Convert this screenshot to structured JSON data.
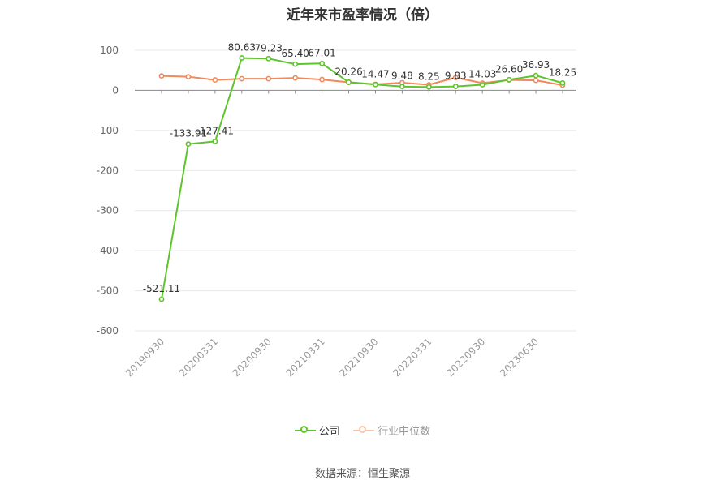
{
  "title": "近年来市盈率情况（倍）",
  "source": "数据来源：恒生聚源",
  "legend": [
    {
      "name": "公司",
      "color": "#5ec42d"
    },
    {
      "name": "行业中位数",
      "color": "#f08a5d"
    }
  ],
  "chart_data": {
    "type": "line",
    "title": "近年来市盈率情况（倍）",
    "xlabel": "",
    "ylabel": "",
    "ylim": [
      -600,
      100
    ],
    "yticks": [
      100,
      0,
      -100,
      -200,
      -300,
      -400,
      -500,
      -600
    ],
    "x": [
      "20190930",
      "20191231",
      "20200331",
      "20200630",
      "20200930",
      "20201231",
      "20210331",
      "20210630",
      "20210930",
      "20211231",
      "20220331",
      "20220630",
      "20220930",
      "20221231",
      "20230630",
      "20230930"
    ],
    "xtick_labels": [
      "20190930",
      "20200331",
      "20200930",
      "20210331",
      "20210930",
      "20220331",
      "20220930",
      "20230630"
    ],
    "grid": true,
    "legend_position": "bottom",
    "series": [
      {
        "name": "公司",
        "color": "#5ec42d",
        "values": [
          -521.11,
          -133.91,
          -127.41,
          80.63,
          79.23,
          65.4,
          67.01,
          20.26,
          14.47,
          9.48,
          8.25,
          9.83,
          14.03,
          26.6,
          36.93,
          18.25
        ],
        "labels": [
          "-521.11",
          "-133.91",
          "-127.41",
          "80.63",
          "79.23",
          "65.40",
          "67.01",
          "20.26",
          "14.47",
          "9.48",
          "8.25",
          "9.83",
          "14.03",
          "26.60",
          "36.93",
          "18.25"
        ]
      },
      {
        "name": "行业中位数",
        "color": "#f08a5d",
        "values": [
          36,
          34,
          26,
          29,
          29,
          31,
          27,
          20,
          15,
          19,
          14,
          32,
          18,
          26,
          25,
          13
        ]
      }
    ]
  }
}
